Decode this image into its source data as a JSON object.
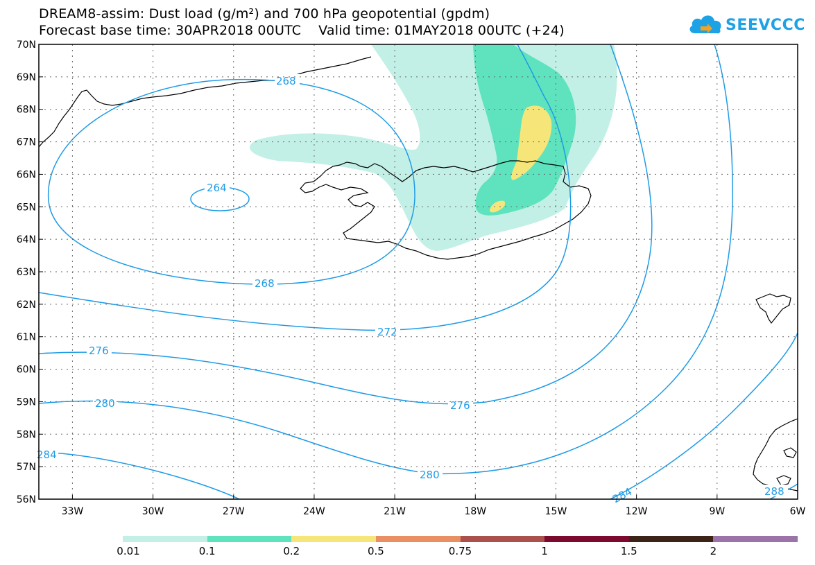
{
  "title": {
    "line1": "DREAM8-assim: Dust load (g/m²) and 700 hPa geopotential (gpdm)",
    "line2": "Forecast base time: 30APR2018 00UTC    Valid time: 01MAY2018 00UTC (+24)"
  },
  "logo": {
    "text": "SEEVCCC",
    "icon": "cloud-icon",
    "color": "#1ea2e6"
  },
  "map": {
    "lat_labels": [
      "70N",
      "69N",
      "68N",
      "67N",
      "66N",
      "65N",
      "64N",
      "63N",
      "62N",
      "61N",
      "60N",
      "59N",
      "58N",
      "57N",
      "56N"
    ],
    "lon_labels": [
      "33W",
      "30W",
      "27W",
      "24W",
      "21W",
      "18W",
      "15W",
      "12W",
      "9W",
      "6W"
    ],
    "contour_color": "#1e9be6",
    "contour_labels": [
      {
        "text": "268",
        "name": "contour-label-268-north"
      },
      {
        "text": "264",
        "name": "contour-label-264"
      },
      {
        "text": "268",
        "name": "contour-label-268-south"
      },
      {
        "text": "272",
        "name": "contour-label-272"
      },
      {
        "text": "276",
        "name": "contour-label-276-west"
      },
      {
        "text": "276",
        "name": "contour-label-276-east"
      },
      {
        "text": "280",
        "name": "contour-label-280-west"
      },
      {
        "text": "280",
        "name": "contour-label-280-east"
      },
      {
        "text": "284",
        "name": "contour-label-284-west"
      },
      {
        "text": "284",
        "name": "contour-label-284-east"
      },
      {
        "text": "288",
        "name": "contour-label-288"
      }
    ]
  },
  "colorbar": {
    "colors": [
      "#c2f0e6",
      "#5ee3be",
      "#f6e67a",
      "#e88f63",
      "#a9514a",
      "#7c0a2e",
      "#3b2417",
      "#9b73a8"
    ],
    "labels": [
      "0.01",
      "0.1",
      "0.2",
      "0.5",
      "0.75",
      "1",
      "1.5",
      "2"
    ]
  }
}
